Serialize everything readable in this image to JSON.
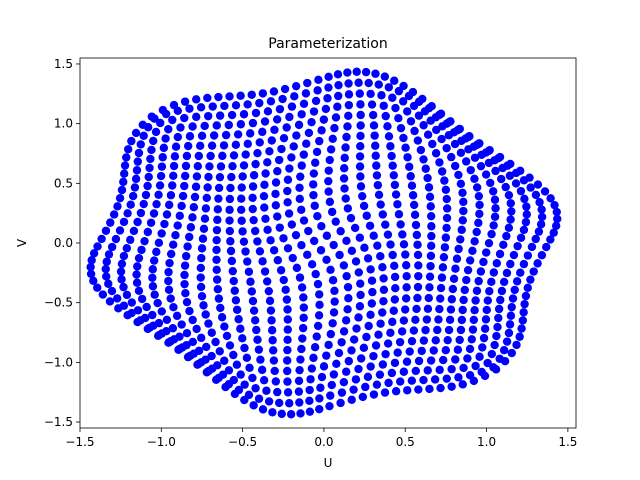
{
  "chart_data": {
    "type": "scatter",
    "title": "Parameterization",
    "xlabel": "U",
    "ylabel": "V",
    "xlim": [
      -1.5,
      1.55
    ],
    "ylim": [
      -1.55,
      1.55
    ],
    "xticks": [
      -1.5,
      -1.0,
      -0.5,
      0.0,
      0.5,
      1.0,
      1.5
    ],
    "xtick_labels": [
      "−1.5",
      "−1.0",
      "−0.5",
      "0.0",
      "0.5",
      "1.0",
      "1.5"
    ],
    "yticks": [
      -1.5,
      -1.0,
      -0.5,
      0.0,
      0.5,
      1.0,
      1.5
    ],
    "ytick_labels": [
      "−1.5",
      "−1.0",
      "−0.5",
      "0.0",
      "0.5",
      "1.0",
      "1.5"
    ],
    "grid": false,
    "legend": "none",
    "marker_color": "#0000ff",
    "series": [
      {
        "points_description": "Approximately 1000 points on a 32x32 grid of curved iso-lines forming a rotated, distorted square disk spanning U in [-1.38, 1.38] and V in [-1.38, 1.38]",
        "grid_size": 32,
        "extent": {
          "u": [
            -1.38,
            1.38
          ],
          "v": [
            -1.38,
            1.38
          ]
        }
      }
    ]
  }
}
